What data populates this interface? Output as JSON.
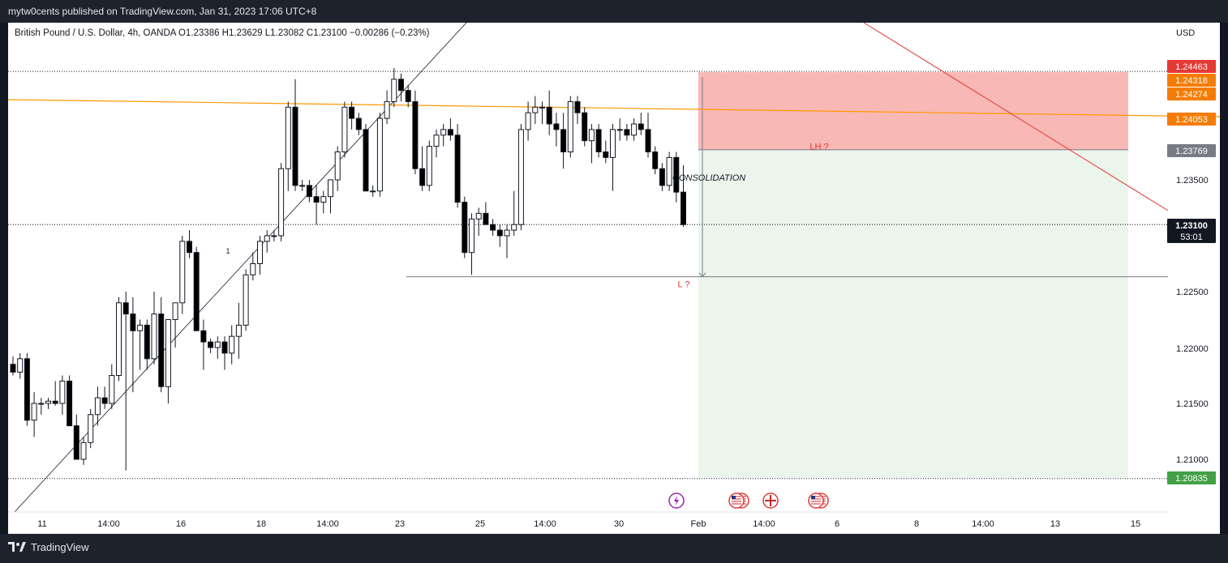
{
  "header": {
    "published": "mytw0cents published on TradingView.com, Jan 31, 2023 17:06 UTC+8"
  },
  "symbol_line": "British Pound / U.S. Dollar, 4h, OANDA  O1.23386  H1.23629  L1.23082  C1.23100  −0.00286 (−0.23%)",
  "footer": {
    "brand": "TradingView"
  },
  "colors": {
    "bull_body": "#ffffff",
    "bear_body": "#000000",
    "stop_zone": "#f8b8b5",
    "target_zone": "#ebf5ec",
    "trendline_orange": "#ff9800",
    "trendline_red": "#e53935",
    "label_red": "#e53935",
    "label_orange": "#f57c00",
    "label_green": "#43a047",
    "label_gray": "#787b86"
  },
  "chart_data": {
    "type": "candlestick",
    "currency_label": "USD",
    "y_ticks": [
      "1.23500",
      "1.22500",
      "1.22000",
      "1.21500",
      "1.21000"
    ],
    "x_ticks": [
      "11",
      "14:00",
      "16",
      "18",
      "14:00",
      "23",
      "25",
      "14:00",
      "30",
      "Feb",
      "14:00",
      "6",
      "8",
      "14:00",
      "13",
      "15"
    ],
    "price_labels": [
      {
        "text": "1.24463",
        "role": "stop"
      },
      {
        "text": "1.24318",
        "role": "orange"
      },
      {
        "text": "1.24274",
        "role": "orange"
      },
      {
        "text": "1.24053",
        "role": "orange"
      },
      {
        "text": "1.23769",
        "role": "entry"
      },
      {
        "text": "1.23100",
        "role": "last"
      },
      {
        "text": "1.20835",
        "role": "target"
      }
    ],
    "countdown": "53:01",
    "annotations": [
      {
        "text": "LH ?",
        "price": 1.238
      },
      {
        "text": "CONSOLIDATION",
        "price": 1.2352
      },
      {
        "text": "L ?",
        "price": 1.2257
      },
      {
        "text": "1",
        "price": 1.2287
      }
    ],
    "levels": {
      "stop": 1.24463,
      "entry": 1.23769,
      "target": 1.20835,
      "last": 1.231,
      "low_line": 1.22633
    },
    "candles": [
      [
        1.2185,
        1.2192,
        1.2175,
        1.2178
      ],
      [
        1.2178,
        1.2195,
        1.2172,
        1.219
      ],
      [
        1.219,
        1.2195,
        1.213,
        1.2135
      ],
      [
        1.2135,
        1.216,
        1.212,
        1.215
      ],
      [
        1.215,
        1.2155,
        1.214,
        1.215
      ],
      [
        1.215,
        1.2155,
        1.2145,
        1.2152
      ],
      [
        1.2152,
        1.217,
        1.2148,
        1.215
      ],
      [
        1.215,
        1.2175,
        1.214,
        1.217
      ],
      [
        1.217,
        1.2175,
        1.213,
        1.213
      ],
      [
        1.213,
        1.214,
        1.21,
        1.21
      ],
      [
        1.21,
        1.212,
        1.2095,
        1.2115
      ],
      [
        1.2115,
        1.2145,
        1.211,
        1.214
      ],
      [
        1.214,
        1.2165,
        1.213,
        1.2155
      ],
      [
        1.2155,
        1.2165,
        1.2145,
        1.215
      ],
      [
        1.215,
        1.2185,
        1.2145,
        1.2175
      ],
      [
        1.2175,
        1.2245,
        1.217,
        1.224
      ],
      [
        1.224,
        1.225,
        1.209,
        1.223
      ],
      [
        1.223,
        1.2245,
        1.216,
        1.2215
      ],
      [
        1.2215,
        1.2225,
        1.218,
        1.222
      ],
      [
        1.222,
        1.2225,
        1.218,
        1.219
      ],
      [
        1.219,
        1.225,
        1.2185,
        1.223
      ],
      [
        1.223,
        1.2245,
        1.216,
        1.2165
      ],
      [
        1.2165,
        1.2225,
        1.215,
        1.2225
      ],
      [
        1.2225,
        1.224,
        1.22,
        1.224
      ],
      [
        1.224,
        1.23,
        1.223,
        1.2295
      ],
      [
        1.2295,
        1.2305,
        1.228,
        1.2285
      ],
      [
        1.2285,
        1.229,
        1.2215,
        1.2215
      ],
      [
        1.2215,
        1.2225,
        1.218,
        1.2205
      ],
      [
        1.2205,
        1.2208,
        1.2195,
        1.22
      ],
      [
        1.22,
        1.221,
        1.219,
        1.2205
      ],
      [
        1.2205,
        1.221,
        1.218,
        1.2195
      ],
      [
        1.2195,
        1.222,
        1.2185,
        1.221
      ],
      [
        1.221,
        1.224,
        1.219,
        1.222
      ],
      [
        1.222,
        1.227,
        1.2215,
        1.2265
      ],
      [
        1.2265,
        1.2285,
        1.226,
        1.2275
      ],
      [
        1.2275,
        1.23,
        1.2265,
        1.2295
      ],
      [
        1.2295,
        1.2305,
        1.2285,
        1.23
      ],
      [
        1.23,
        1.2305,
        1.2295,
        1.23
      ],
      [
        1.23,
        1.2365,
        1.2295,
        1.236
      ],
      [
        1.236,
        1.242,
        1.234,
        1.2415
      ],
      [
        1.2415,
        1.244,
        1.234,
        1.2345
      ],
      [
        1.2345,
        1.235,
        1.234,
        1.2345
      ],
      [
        1.2345,
        1.235,
        1.233,
        1.2335
      ],
      [
        1.2335,
        1.2345,
        1.231,
        1.233
      ],
      [
        1.233,
        1.234,
        1.232,
        1.2335
      ],
      [
        1.2335,
        1.235,
        1.232,
        1.235
      ],
      [
        1.235,
        1.238,
        1.234,
        1.2375
      ],
      [
        1.2375,
        1.242,
        1.237,
        1.2415
      ],
      [
        1.2415,
        1.242,
        1.2395,
        1.2405
      ],
      [
        1.2405,
        1.241,
        1.239,
        1.2395
      ],
      [
        1.2395,
        1.24,
        1.234,
        1.234
      ],
      [
        1.234,
        1.2345,
        1.2335,
        1.234
      ],
      [
        1.234,
        1.241,
        1.2335,
        1.2405
      ],
      [
        1.2405,
        1.243,
        1.24,
        1.242
      ],
      [
        1.242,
        1.245,
        1.2415,
        1.244
      ],
      [
        1.244,
        1.2445,
        1.242,
        1.243
      ],
      [
        1.243,
        1.2435,
        1.2415,
        1.242
      ],
      [
        1.242,
        1.243,
        1.2355,
        1.236
      ],
      [
        1.236,
        1.238,
        1.234,
        1.2345
      ],
      [
        1.2345,
        1.2385,
        1.234,
        1.238
      ],
      [
        1.238,
        1.2395,
        1.237,
        1.239
      ],
      [
        1.239,
        1.24,
        1.238,
        1.2395
      ],
      [
        1.2395,
        1.2405,
        1.2385,
        1.239
      ],
      [
        1.239,
        1.24,
        1.2325,
        1.233
      ],
      [
        1.233,
        1.2335,
        1.228,
        1.2285
      ],
      [
        1.2285,
        1.232,
        1.2265,
        1.2315
      ],
      [
        1.2315,
        1.2325,
        1.23,
        1.232
      ],
      [
        1.232,
        1.233,
        1.231,
        1.231
      ],
      [
        1.231,
        1.2315,
        1.23,
        1.2305
      ],
      [
        1.2305,
        1.231,
        1.229,
        1.23
      ],
      [
        1.23,
        1.231,
        1.228,
        1.2305
      ],
      [
        1.2305,
        1.234,
        1.23,
        1.231
      ],
      [
        1.231,
        1.24,
        1.2305,
        1.2395
      ],
      [
        1.2395,
        1.242,
        1.2385,
        1.241
      ],
      [
        1.241,
        1.2425,
        1.24,
        1.2415
      ],
      [
        1.2415,
        1.242,
        1.24,
        1.2415
      ],
      [
        1.2415,
        1.243,
        1.239,
        1.24
      ],
      [
        1.24,
        1.241,
        1.238,
        1.2395
      ],
      [
        1.2395,
        1.241,
        1.236,
        1.2375
      ],
      [
        1.2375,
        1.2425,
        1.237,
        1.242
      ],
      [
        1.242,
        1.2425,
        1.24,
        1.241
      ],
      [
        1.241,
        1.2415,
        1.238,
        1.2385
      ],
      [
        1.2385,
        1.24,
        1.2365,
        1.2395
      ],
      [
        1.2395,
        1.24,
        1.237,
        1.2375
      ],
      [
        1.2375,
        1.2385,
        1.2365,
        1.237
      ],
      [
        1.237,
        1.24,
        1.234,
        1.2395
      ],
      [
        1.2395,
        1.2405,
        1.2385,
        1.2395
      ],
      [
        1.2395,
        1.24,
        1.2385,
        1.239
      ],
      [
        1.239,
        1.2405,
        1.2385,
        1.24
      ],
      [
        1.24,
        1.241,
        1.239,
        1.2395
      ],
      [
        1.2395,
        1.241,
        1.237,
        1.2375
      ],
      [
        1.2375,
        1.238,
        1.2355,
        1.236
      ],
      [
        1.236,
        1.2365,
        1.234,
        1.2345
      ],
      [
        1.2345,
        1.2375,
        1.234,
        1.237
      ],
      [
        1.237,
        1.2375,
        1.233,
        1.2339
      ],
      [
        1.2339,
        1.2363,
        1.2308,
        1.231
      ]
    ]
  }
}
